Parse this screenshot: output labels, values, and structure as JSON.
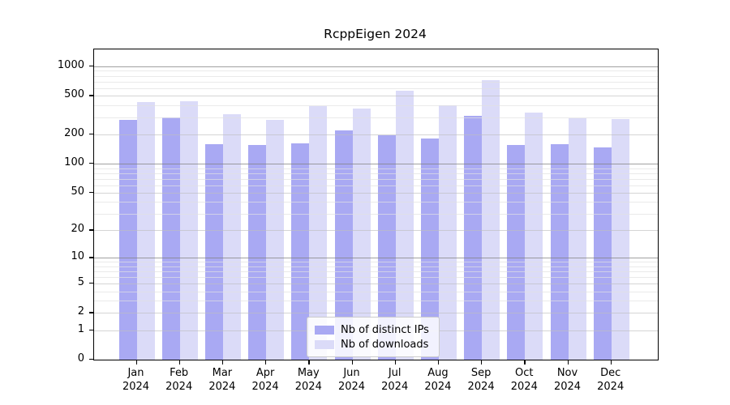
{
  "chart_data": {
    "type": "bar",
    "title": "RcppEigen 2024",
    "categories": [
      "Jan 2024",
      "Feb 2024",
      "Mar 2024",
      "Apr 2024",
      "May 2024",
      "Jun 2024",
      "Jul 2024",
      "Aug 2024",
      "Sep 2024",
      "Oct 2024",
      "Nov 2024",
      "Dec 2024"
    ],
    "series": [
      {
        "name": "Nb of distinct IPs",
        "color": "#a9a9f3",
        "values": [
          280,
          300,
          158,
          157,
          161,
          220,
          197,
          183,
          310,
          156,
          160,
          148
        ]
      },
      {
        "name": "Nb of downloads",
        "color": "#dbdbf8",
        "values": [
          433,
          436,
          322,
          283,
          391,
          371,
          563,
          396,
          720,
          337,
          294,
          290
        ]
      }
    ],
    "yscale": "log1p",
    "ylim": [
      0,
      1490
    ],
    "yticks": [
      0,
      1,
      2,
      5,
      10,
      20,
      50,
      100,
      200,
      500,
      1000
    ],
    "ytick_labels": [
      "0",
      "1",
      "2",
      "5",
      "10",
      "20",
      "50",
      "100",
      "200",
      "500",
      "1000"
    ],
    "decade_yticks": [
      10,
      100,
      1000
    ],
    "minor_yticks": [
      3,
      4,
      6,
      7,
      8,
      9,
      30,
      40,
      60,
      70,
      80,
      90,
      300,
      400,
      600,
      700,
      800,
      900
    ],
    "grid": true,
    "legend_position": "lower center",
    "xlabel": "",
    "ylabel": ""
  },
  "colors": {
    "background": "#ffffff",
    "spine": "#000000",
    "grid_decade": "rgba(130,130,130,0.75)",
    "grid_labeled": "rgba(190,190,190,0.65)",
    "grid_minor": "rgba(225,225,225,0.7)",
    "text": "#000000"
  }
}
